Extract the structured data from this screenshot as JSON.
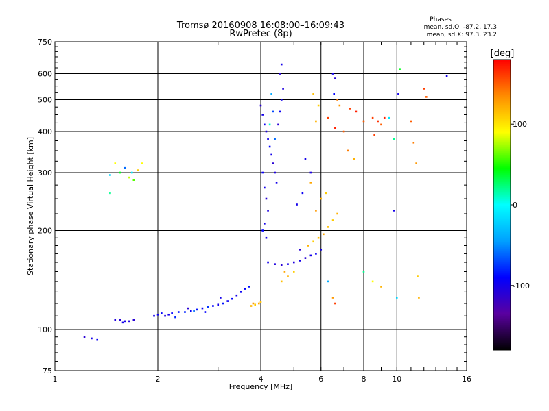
{
  "chart_data": {
    "type": "scatter",
    "title": "Tromsø 20160908 16:08:00–16:09:43",
    "subtitle": "RwPretec (8p)",
    "xlabel": "Frequency [MHz]",
    "ylabel": "Stationary phase Virtual Height [km]",
    "x_scale": "log",
    "y_scale": "log",
    "xlim": [
      1,
      16
    ],
    "ylim": [
      75,
      750
    ],
    "x_ticks": [
      1,
      2,
      4,
      6,
      8,
      10,
      16
    ],
    "y_ticks": [
      75,
      100,
      200,
      300,
      400,
      500,
      600,
      750
    ],
    "grid": true,
    "stats": {
      "heading": "Phases",
      "o_line": "mean, sd,O: -87.2, 17.3",
      "x_line": "mean, sd,X: 97.3, 23.2"
    },
    "colorbar": {
      "label": "[deg]",
      "range": [
        -180,
        180
      ],
      "ticks": [
        100,
        0,
        -100
      ],
      "colors": [
        "#000000",
        "#5a00a0",
        "#0000ff",
        "#00a0ff",
        "#00ffff",
        "#00ff00",
        "#ffff00",
        "#ff8c00",
        "#ff0000"
      ]
    },
    "series": [
      {
        "points": [
          [
            1.22,
            95,
            -110
          ],
          [
            1.28,
            94,
            -100
          ],
          [
            1.33,
            93,
            -95
          ],
          [
            1.5,
            107,
            -105
          ],
          [
            1.55,
            107,
            -110
          ],
          [
            1.6,
            106,
            -100
          ],
          [
            1.65,
            106,
            -105
          ],
          [
            1.7,
            107,
            -110
          ],
          [
            1.58,
            105,
            -100
          ],
          [
            1.95,
            110,
            -100
          ],
          [
            2.0,
            111,
            -95
          ],
          [
            2.05,
            112,
            -90
          ],
          [
            2.1,
            110,
            -105
          ],
          [
            2.15,
            111,
            -100
          ],
          [
            2.2,
            112,
            -90
          ],
          [
            2.3,
            113,
            -85
          ],
          [
            2.4,
            113,
            -80
          ],
          [
            2.5,
            114,
            -95
          ],
          [
            2.55,
            114,
            -60
          ],
          [
            2.6,
            115,
            -85
          ],
          [
            2.7,
            116,
            -95
          ],
          [
            2.8,
            117,
            -75
          ],
          [
            2.9,
            118,
            -90
          ],
          [
            3.0,
            119,
            -100
          ],
          [
            3.1,
            120,
            -85
          ],
          [
            3.2,
            122,
            -95
          ],
          [
            3.3,
            124,
            -90
          ],
          [
            3.4,
            127,
            -100
          ],
          [
            3.5,
            130,
            -95
          ],
          [
            3.6,
            133,
            -90
          ],
          [
            3.7,
            135,
            -85
          ],
          [
            2.25,
            109,
            -80
          ],
          [
            2.45,
            116,
            -110
          ],
          [
            2.75,
            113,
            -90
          ],
          [
            3.05,
            125,
            -100
          ],
          [
            3.75,
            118,
            120
          ],
          [
            3.85,
            119,
            110
          ],
          [
            3.95,
            120,
            125
          ],
          [
            4.0,
            121,
            115
          ],
          [
            3.8,
            120,
            130
          ],
          [
            1.45,
            295,
            -20
          ],
          [
            1.5,
            320,
            90
          ],
          [
            1.55,
            300,
            40
          ],
          [
            1.6,
            310,
            -60
          ],
          [
            1.65,
            290,
            80
          ],
          [
            1.7,
            285,
            60
          ],
          [
            1.75,
            305,
            110
          ],
          [
            1.8,
            320,
            90
          ],
          [
            1.68,
            300,
            -10
          ],
          [
            1.45,
            260,
            20
          ],
          [
            4.0,
            480,
            -110
          ],
          [
            4.05,
            450,
            -100
          ],
          [
            4.1,
            420,
            -95
          ],
          [
            4.15,
            400,
            -105
          ],
          [
            4.2,
            380,
            -100
          ],
          [
            4.25,
            360,
            -90
          ],
          [
            4.3,
            340,
            -100
          ],
          [
            4.35,
            320,
            -110
          ],
          [
            4.4,
            300,
            -105
          ],
          [
            4.45,
            280,
            -100
          ],
          [
            4.5,
            420,
            -110
          ],
          [
            4.55,
            460,
            -95
          ],
          [
            4.6,
            500,
            -100
          ],
          [
            4.65,
            540,
            -105
          ],
          [
            4.55,
            600,
            -110
          ],
          [
            4.6,
            640,
            -100
          ],
          [
            4.05,
            300,
            -95
          ],
          [
            4.1,
            270,
            -100
          ],
          [
            4.15,
            250,
            -110
          ],
          [
            4.2,
            230,
            -105
          ],
          [
            4.1,
            210,
            -100
          ],
          [
            4.05,
            200,
            -90
          ],
          [
            4.15,
            190,
            -100
          ],
          [
            4.3,
            520,
            -40
          ],
          [
            4.35,
            460,
            -70
          ],
          [
            4.4,
            380,
            -60
          ],
          [
            4.25,
            420,
            10
          ],
          [
            4.2,
            160,
            -100
          ],
          [
            4.4,
            158,
            -105
          ],
          [
            4.6,
            157,
            -110
          ],
          [
            4.8,
            158,
            -100
          ],
          [
            5.0,
            160,
            -105
          ],
          [
            5.2,
            162,
            -100
          ],
          [
            5.4,
            165,
            -110
          ],
          [
            5.6,
            168,
            -100
          ],
          [
            5.8,
            170,
            -95
          ],
          [
            6.0,
            175,
            -100
          ],
          [
            5.2,
            175,
            -110
          ],
          [
            5.4,
            330,
            -100
          ],
          [
            5.6,
            300,
            -105
          ],
          [
            5.3,
            260,
            -95
          ],
          [
            5.1,
            240,
            -100
          ],
          [
            5.5,
            180,
            120
          ],
          [
            5.7,
            185,
            110
          ],
          [
            5.9,
            190,
            115
          ],
          [
            6.1,
            195,
            125
          ],
          [
            6.3,
            205,
            115
          ],
          [
            6.5,
            215,
            110
          ],
          [
            6.7,
            225,
            120
          ],
          [
            5.8,
            230,
            130
          ],
          [
            6.0,
            250,
            120
          ],
          [
            6.2,
            260,
            110
          ],
          [
            5.6,
            280,
            125
          ],
          [
            5.8,
            430,
            120
          ],
          [
            5.9,
            480,
            110
          ],
          [
            5.7,
            520,
            115
          ],
          [
            4.6,
            140,
            115
          ],
          [
            4.8,
            145,
            120
          ],
          [
            5.0,
            150,
            110
          ],
          [
            4.7,
            150,
            125
          ],
          [
            6.5,
            600,
            -100
          ],
          [
            6.6,
            580,
            -110
          ],
          [
            6.55,
            520,
            -90
          ],
          [
            6.7,
            500,
            140
          ],
          [
            6.8,
            480,
            130
          ],
          [
            7.3,
            470,
            160
          ],
          [
            7.6,
            460,
            170
          ],
          [
            7.5,
            330,
            120
          ],
          [
            8.0,
            430,
            150
          ],
          [
            8.5,
            440,
            160
          ],
          [
            8.8,
            430,
            165
          ],
          [
            9.0,
            420,
            150
          ],
          [
            9.2,
            440,
            170
          ],
          [
            6.3,
            440,
            160
          ],
          [
            6.6,
            410,
            170
          ],
          [
            7.0,
            400,
            150
          ],
          [
            7.2,
            350,
            140
          ],
          [
            8.6,
            390,
            160
          ],
          [
            6.3,
            140,
            -40
          ],
          [
            6.5,
            125,
            130
          ],
          [
            6.6,
            120,
            160
          ],
          [
            8.0,
            150,
            20
          ],
          [
            8.5,
            140,
            90
          ],
          [
            9.0,
            135,
            120
          ],
          [
            9.8,
            230,
            -100
          ],
          [
            10.0,
            125,
            -20
          ],
          [
            10.2,
            620,
            40
          ],
          [
            10.1,
            520,
            -100
          ],
          [
            11.0,
            430,
            150
          ],
          [
            11.2,
            370,
            140
          ],
          [
            11.4,
            320,
            130
          ],
          [
            12.0,
            540,
            160
          ],
          [
            12.2,
            510,
            150
          ],
          [
            14.0,
            590,
            -100
          ],
          [
            11.5,
            145,
            110
          ],
          [
            11.6,
            125,
            120
          ],
          [
            9.5,
            440,
            -10
          ],
          [
            9.8,
            380,
            20
          ]
        ]
      }
    ]
  }
}
